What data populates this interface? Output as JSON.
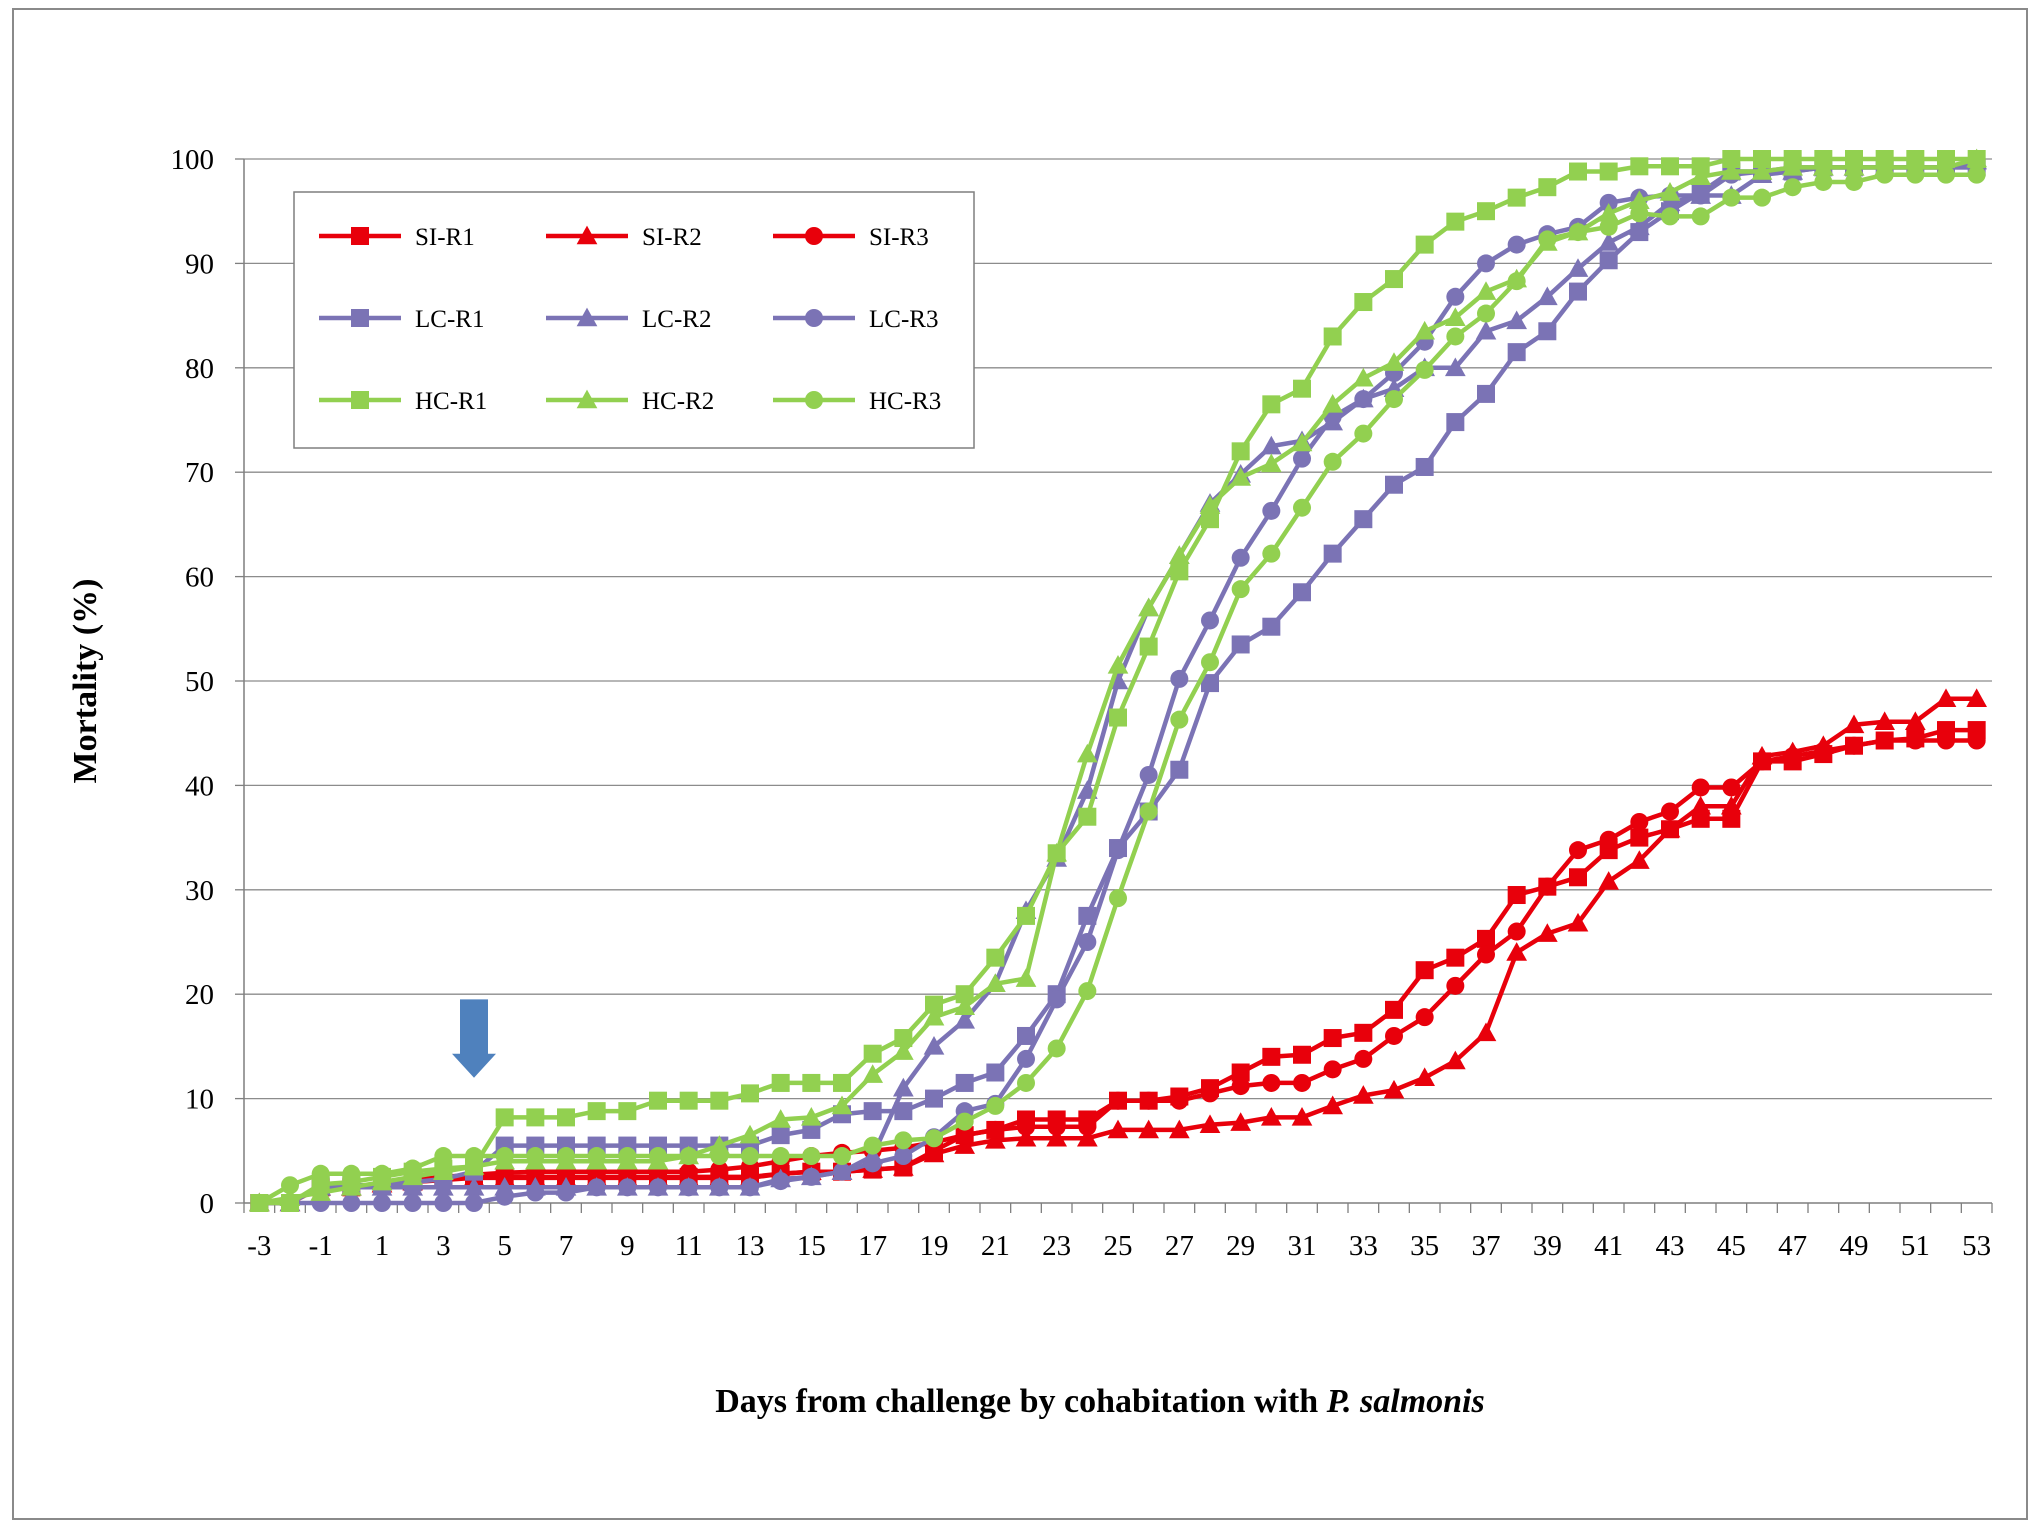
{
  "chart_data": {
    "type": "line",
    "title": "",
    "xlabel": "Days from challenge by cohabitation with P. salmonis",
    "xlabel_parts": [
      {
        "text": "Days from challenge by cohabitation with ",
        "italic": false
      },
      {
        "text": "P. salmonis",
        "italic": true
      }
    ],
    "ylabel": "Mortality (%)",
    "ylim": [
      0,
      100
    ],
    "xlim": [
      -3,
      53
    ],
    "yticks": [
      0,
      10,
      20,
      30,
      40,
      50,
      60,
      70,
      80,
      90,
      100
    ],
    "xtick_labels": [
      "-3",
      "-1",
      "1",
      "3",
      "5",
      "7",
      "9",
      "11",
      "13",
      "15",
      "17",
      "19",
      "21",
      "23",
      "25",
      "27",
      "29",
      "31",
      "33",
      "35",
      "37",
      "39",
      "41",
      "43",
      "45",
      "47",
      "49",
      "51",
      "53"
    ],
    "grid": "horizontal",
    "legend_position": "top-left",
    "annotation": {
      "type": "arrow-down",
      "x": 4,
      "y_top": 19.5,
      "y_bottom": 12,
      "color": "#4f81bd"
    },
    "series": [
      {
        "name": "SI-R1",
        "color": "#e8000b",
        "marker": "square",
        "x": [
          -3,
          -2,
          -1,
          0,
          1,
          2,
          3,
          4,
          5,
          6,
          7,
          8,
          9,
          10,
          11,
          12,
          13,
          14,
          15,
          16,
          17,
          18,
          19,
          20,
          21,
          22,
          23,
          24,
          25,
          26,
          27,
          28,
          29,
          30,
          31,
          32,
          33,
          34,
          35,
          36,
          37,
          38,
          39,
          40,
          41,
          42,
          43,
          44,
          45,
          46,
          47,
          48,
          49,
          50,
          51,
          52,
          53
        ],
        "y": [
          0,
          0,
          1.5,
          1.5,
          1.8,
          2,
          2.3,
          2.5,
          2.5,
          2.5,
          2.5,
          2.5,
          2.5,
          2.5,
          2.5,
          2.5,
          2.5,
          2.8,
          3,
          3,
          3.2,
          3.4,
          5,
          6.5,
          7,
          8,
          8,
          8,
          9.8,
          9.8,
          10.2,
          11,
          12.5,
          14,
          14.2,
          15.8,
          16.3,
          18.5,
          22.3,
          23.5,
          25.3,
          29.5,
          30.3,
          31.2,
          33.8,
          35,
          35.8,
          36.8,
          36.8,
          42.3,
          42.3,
          43,
          43.8,
          44.3,
          44.5,
          45.3,
          45.3
        ]
      },
      {
        "name": "SI-R2",
        "color": "#e8000b",
        "marker": "triangle",
        "x": [
          -3,
          -2,
          -1,
          0,
          1,
          2,
          3,
          4,
          5,
          6,
          7,
          8,
          9,
          10,
          11,
          12,
          13,
          14,
          15,
          16,
          17,
          18,
          19,
          20,
          21,
          22,
          23,
          24,
          25,
          26,
          27,
          28,
          29,
          30,
          31,
          32,
          33,
          34,
          35,
          36,
          37,
          38,
          39,
          40,
          41,
          42,
          43,
          44,
          45,
          46,
          47,
          48,
          49,
          50,
          51,
          52,
          53
        ],
        "y": [
          0,
          0,
          1.5,
          1.5,
          1.8,
          2,
          2.2,
          2.4,
          2.4,
          2.4,
          2.4,
          2.4,
          2.4,
          2.4,
          2.4,
          2.4,
          2.4,
          2.8,
          3,
          3,
          3.2,
          3.4,
          4.7,
          5.5,
          6,
          6.2,
          6.2,
          6.2,
          7,
          7,
          7,
          7.5,
          7.7,
          8.2,
          8.2,
          9.3,
          10.3,
          10.8,
          12,
          13.6,
          16.3,
          24,
          25.8,
          26.8,
          30.8,
          32.8,
          35.8,
          38,
          38,
          42.8,
          43.2,
          43.8,
          45.8,
          46.1,
          46.1,
          48.3,
          48.3
        ]
      },
      {
        "name": "SI-R3",
        "color": "#e8000b",
        "marker": "circle",
        "x": [
          -3,
          -2,
          -1,
          0,
          1,
          2,
          3,
          4,
          5,
          6,
          7,
          8,
          9,
          10,
          11,
          12,
          13,
          14,
          15,
          16,
          17,
          18,
          19,
          20,
          21,
          22,
          23,
          24,
          25,
          26,
          27,
          28,
          29,
          30,
          31,
          32,
          33,
          34,
          35,
          36,
          37,
          38,
          39,
          40,
          41,
          42,
          43,
          44,
          45,
          46,
          47,
          48,
          49,
          50,
          51,
          52,
          53
        ],
        "y": [
          0,
          0,
          1.5,
          1.5,
          1.8,
          2.2,
          2.5,
          2.7,
          2.9,
          3,
          3,
          3,
          3,
          3,
          3,
          3.2,
          3.5,
          4,
          4.5,
          4.8,
          5,
          5.3,
          5.8,
          6.5,
          7,
          7.3,
          7.3,
          7.3,
          9.8,
          9.8,
          9.8,
          10.5,
          11.2,
          11.5,
          11.5,
          12.8,
          13.8,
          16,
          17.8,
          20.8,
          23.8,
          26,
          30.3,
          33.8,
          34.8,
          36.5,
          37.5,
          39.8,
          39.8,
          42.3,
          42.8,
          43.3,
          43.8,
          44.3,
          44.3,
          44.3,
          44.3
        ]
      },
      {
        "name": "LC-R1",
        "color": "#7b73b5",
        "marker": "square",
        "x": [
          -3,
          -2,
          -1,
          0,
          1,
          2,
          3,
          4,
          5,
          6,
          7,
          8,
          9,
          10,
          11,
          12,
          13,
          14,
          15,
          16,
          17,
          18,
          19,
          20,
          21,
          22,
          23,
          24,
          25,
          26,
          27,
          28,
          29,
          30,
          31,
          32,
          33,
          34,
          35,
          36,
          37,
          38,
          39,
          40,
          41,
          42,
          43,
          44,
          45,
          46,
          47,
          48,
          49,
          50,
          51,
          52,
          53
        ],
        "y": [
          0,
          0,
          1.7,
          1.7,
          1.7,
          2,
          2.3,
          3,
          5.5,
          5.5,
          5.5,
          5.5,
          5.5,
          5.5,
          5.5,
          5.5,
          5.5,
          6.5,
          7,
          8.5,
          8.8,
          8.8,
          10,
          11.5,
          12.5,
          16,
          20,
          27.5,
          34,
          37.5,
          41.5,
          49.8,
          53.5,
          55.2,
          58.5,
          62.2,
          65.5,
          68.8,
          70.5,
          74.8,
          77.5,
          81.5,
          83.5,
          87.3,
          90.3,
          93,
          95,
          96.8,
          98.8,
          98.8,
          98.8,
          99.2,
          99.2,
          99.2,
          99.2,
          99.2,
          99.2
        ]
      },
      {
        "name": "LC-R2",
        "color": "#7b73b5",
        "marker": "triangle",
        "x": [
          -3,
          -2,
          -1,
          0,
          1,
          2,
          3,
          4,
          5,
          6,
          7,
          8,
          9,
          10,
          11,
          12,
          13,
          14,
          15,
          16,
          17,
          18,
          19,
          20,
          21,
          22,
          23,
          24,
          25,
          26,
          27,
          28,
          29,
          30,
          31,
          32,
          33,
          34,
          35,
          36,
          37,
          38,
          39,
          40,
          41,
          42,
          43,
          44,
          45,
          46,
          47,
          48,
          49,
          50,
          51,
          52,
          53
        ],
        "y": [
          0,
          0,
          1.5,
          1.5,
          1.5,
          1.5,
          1.5,
          1.5,
          1.5,
          1.5,
          1.5,
          1.5,
          1.5,
          1.5,
          1.5,
          1.5,
          1.5,
          2.3,
          2.5,
          3,
          4.5,
          11,
          15,
          17.5,
          21,
          28,
          33,
          39.5,
          50,
          57,
          62,
          67,
          69.8,
          72.5,
          73,
          74.8,
          77,
          78,
          80,
          80,
          83.5,
          84.5,
          86.8,
          89.5,
          92,
          93.5,
          95.8,
          96.5,
          96.5,
          98.5,
          98.8,
          99.2,
          99.2,
          99.2,
          99.2,
          99.2,
          99.8
        ]
      },
      {
        "name": "LC-R3",
        "color": "#7b73b5",
        "marker": "circle",
        "x": [
          -3,
          -2,
          -1,
          0,
          1,
          2,
          3,
          4,
          5,
          6,
          7,
          8,
          9,
          10,
          11,
          12,
          13,
          14,
          15,
          16,
          17,
          18,
          19,
          20,
          21,
          22,
          23,
          24,
          25,
          26,
          27,
          28,
          29,
          30,
          31,
          32,
          33,
          34,
          35,
          36,
          37,
          38,
          39,
          40,
          41,
          42,
          43,
          44,
          45,
          46,
          47,
          48,
          49,
          50,
          51,
          52,
          53
        ],
        "y": [
          0,
          0,
          0,
          0,
          0,
          0,
          0,
          0,
          0.6,
          1,
          1,
          1.5,
          1.5,
          1.5,
          1.5,
          1.5,
          1.5,
          2.1,
          2.5,
          3,
          3.8,
          4.5,
          6.3,
          8.8,
          9.5,
          13.8,
          19.5,
          25,
          33.8,
          41,
          50.2,
          55.8,
          61.8,
          66.3,
          71.3,
          75.3,
          77,
          79.5,
          82.5,
          86.8,
          90,
          91.8,
          92.8,
          93.5,
          95.8,
          96.3,
          96.5,
          96.5,
          98.5,
          98.8,
          99.2,
          99.2,
          99.2,
          99.2,
          99.2,
          99.2,
          99.2
        ]
      },
      {
        "name": "HC-R1",
        "color": "#92d050",
        "marker": "square",
        "x": [
          -3,
          -2,
          -1,
          0,
          1,
          2,
          3,
          4,
          5,
          6,
          7,
          8,
          9,
          10,
          11,
          12,
          13,
          14,
          15,
          16,
          17,
          18,
          19,
          20,
          21,
          22,
          23,
          24,
          25,
          26,
          27,
          28,
          29,
          30,
          31,
          32,
          33,
          34,
          35,
          36,
          37,
          38,
          39,
          40,
          41,
          42,
          43,
          44,
          45,
          46,
          47,
          48,
          49,
          50,
          51,
          52,
          53
        ],
        "y": [
          0,
          0,
          1.8,
          2,
          2.5,
          3,
          3.3,
          3.5,
          8.2,
          8.2,
          8.2,
          8.8,
          8.8,
          9.8,
          9.8,
          9.8,
          10.5,
          11.5,
          11.5,
          11.5,
          14.3,
          15.8,
          19,
          20,
          23.5,
          27.5,
          33.5,
          37,
          46.5,
          53.3,
          60.5,
          65.5,
          72,
          76.5,
          78,
          83,
          86.3,
          88.5,
          91.8,
          94,
          95,
          96.3,
          97.3,
          98.8,
          98.8,
          99.3,
          99.3,
          99.3,
          100,
          100,
          100,
          100,
          100,
          100,
          100,
          100,
          100
        ]
      },
      {
        "name": "HC-R2",
        "color": "#92d050",
        "marker": "triangle",
        "x": [
          -3,
          -2,
          -1,
          0,
          1,
          2,
          3,
          4,
          5,
          6,
          7,
          8,
          9,
          10,
          11,
          12,
          13,
          14,
          15,
          16,
          17,
          18,
          19,
          20,
          21,
          22,
          23,
          24,
          25,
          26,
          27,
          28,
          29,
          30,
          31,
          32,
          33,
          34,
          35,
          36,
          37,
          38,
          39,
          40,
          41,
          42,
          43,
          44,
          45,
          46,
          47,
          48,
          49,
          50,
          51,
          52,
          53
        ],
        "y": [
          0,
          0.5,
          1,
          1.5,
          2,
          2.5,
          3,
          3.5,
          4,
          4,
          4,
          4,
          4,
          4,
          4.5,
          5.5,
          6.5,
          8,
          8.2,
          9.3,
          12.3,
          14.5,
          17.8,
          18.8,
          21,
          21.5,
          33.5,
          43,
          51.5,
          57,
          62,
          66.8,
          69.5,
          70.8,
          72.8,
          76.5,
          79,
          80.5,
          83.5,
          84.8,
          87.3,
          88.5,
          92,
          93,
          94.8,
          96,
          96.8,
          98.3,
          98.8,
          98.8,
          99.2,
          99.2,
          99.2,
          99.2,
          99.2,
          99.2,
          100
        ]
      },
      {
        "name": "HC-R3",
        "color": "#92d050",
        "marker": "circle",
        "x": [
          -3,
          -2,
          -1,
          0,
          1,
          2,
          3,
          4,
          5,
          6,
          7,
          8,
          9,
          10,
          11,
          12,
          13,
          14,
          15,
          16,
          17,
          18,
          19,
          20,
          21,
          22,
          23,
          24,
          25,
          26,
          27,
          28,
          29,
          30,
          31,
          32,
          33,
          34,
          35,
          36,
          37,
          38,
          39,
          40,
          41,
          42,
          43,
          44,
          45,
          46,
          47,
          48,
          49,
          50,
          51,
          52,
          53
        ],
        "y": [
          0,
          1.7,
          2.8,
          2.8,
          2.8,
          3.3,
          4.5,
          4.5,
          4.5,
          4.5,
          4.5,
          4.5,
          4.5,
          4.5,
          4.5,
          4.5,
          4.5,
          4.5,
          4.5,
          4.5,
          5.5,
          6,
          6.2,
          7.8,
          9.3,
          11.5,
          14.8,
          20.3,
          29.2,
          37.5,
          46.3,
          51.8,
          58.8,
          62.2,
          66.6,
          71,
          73.7,
          77,
          79.8,
          83,
          85.2,
          88.3,
          92.3,
          93,
          93.5,
          94.8,
          94.5,
          94.5,
          96.3,
          96.3,
          97.3,
          97.8,
          97.8,
          98.5,
          98.5,
          98.5,
          98.5
        ]
      }
    ]
  }
}
